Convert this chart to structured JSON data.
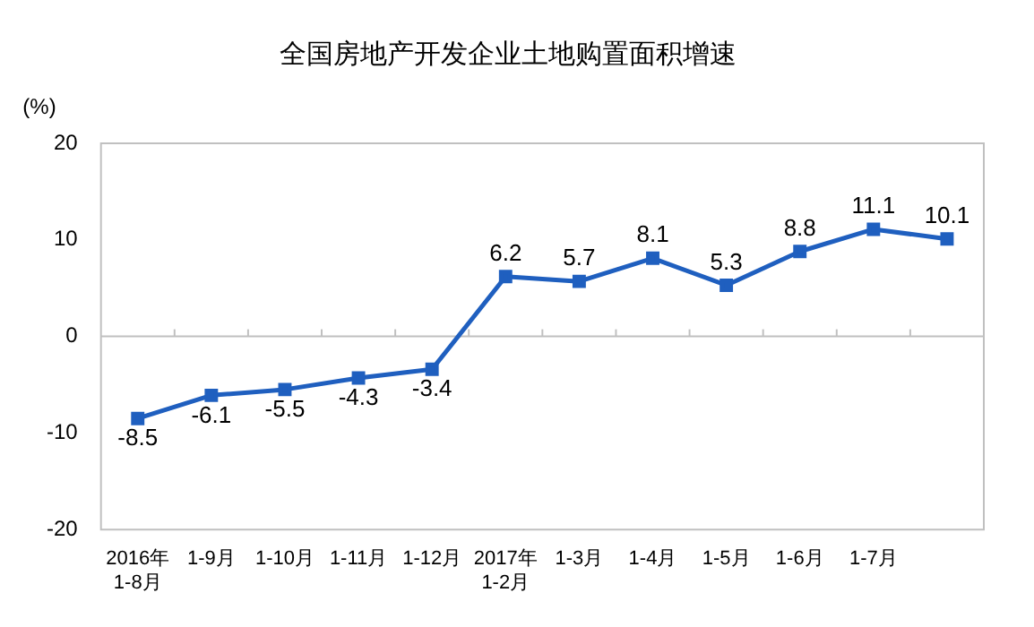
{
  "chart_data": {
    "type": "line",
    "title": "全国房地产开发企业土地购置面积增速",
    "ylabel": "(%)",
    "categories": [
      "2016年\n1-8月",
      "1-9月",
      "1-10月",
      "1-11月",
      "1-12月",
      "2017年\n1-2月",
      "1-3月",
      "1-4月",
      "1-5月",
      "1-6月",
      "1-7月",
      null
    ],
    "series": [
      {
        "color": "#1f5fbf",
        "values": [
          -8.5,
          -6.1,
          -5.5,
          -4.3,
          -3.4,
          6.2,
          5.7,
          8.1,
          5.3,
          8.8,
          11.1,
          10.1
        ]
      }
    ],
    "ylim": [
      -20,
      20
    ],
    "yticks": [
      -20,
      -10,
      0,
      10,
      20
    ],
    "grid": false,
    "legend": false,
    "marker": "square",
    "line_style": "solid",
    "data_labels": true,
    "ref_lines": [
      {
        "axis": "y",
        "value": 0,
        "color": "#c0c0c0"
      }
    ]
  }
}
